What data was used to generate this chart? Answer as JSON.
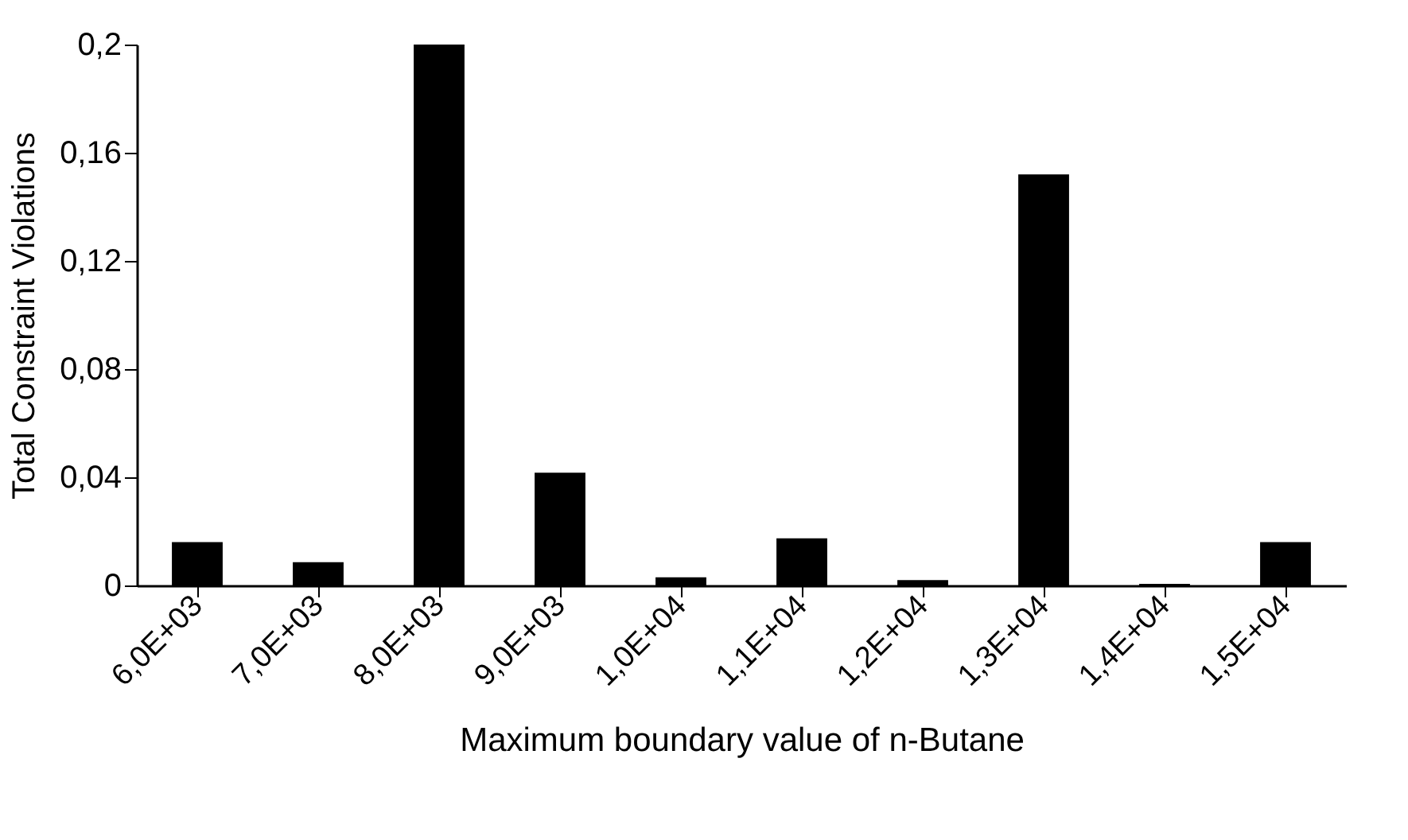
{
  "chart_data": {
    "type": "bar",
    "xlabel": "Maximum boundary value of n-Butane",
    "ylabel": "Total Constraint Violations",
    "categories": [
      "6,0E+03",
      "7,0E+03",
      "8,0E+03",
      "9,0E+03",
      "1,0E+04",
      "1,1E+04",
      "1,2E+04",
      "1,3E+04",
      "1,4E+04",
      "1,5E+04"
    ],
    "values": [
      0.016,
      0.0086,
      0.2,
      0.0417,
      0.003,
      0.0174,
      0.002,
      0.152,
      0.0006,
      0.016
    ],
    "color": "#000000",
    "ylim": [
      0,
      0.2
    ],
    "yticks": [
      {
        "value": 0,
        "label": "0"
      },
      {
        "value": 0.04,
        "label": "0,04"
      },
      {
        "value": 0.08,
        "label": "0,08"
      },
      {
        "value": 0.12,
        "label": "0,12"
      },
      {
        "value": 0.16,
        "label": "0,16"
      },
      {
        "value": 0.2,
        "label": "0,2"
      }
    ],
    "grid": false
  }
}
